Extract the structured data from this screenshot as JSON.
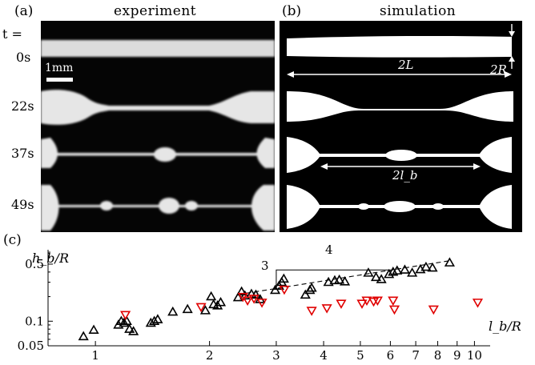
{
  "figure": {
    "panel_a": {
      "label": "(a)",
      "title": "experiment"
    },
    "panel_b": {
      "label": "(b)",
      "title": "simulation"
    },
    "panel_c": {
      "label": "(c)"
    },
    "time_header": "t =",
    "times": [
      "0s",
      "22s",
      "37s",
      "49s"
    ],
    "scale_bar": "1mm",
    "sim_annotations": {
      "radius": "2R",
      "length": "2L",
      "bead_length": "2l_b"
    }
  },
  "chart_data": {
    "type": "scatter",
    "title": "",
    "xlabel": "l_b/R",
    "ylabel": "h_b/R",
    "xscale": "log",
    "yscale": "log",
    "xlim": [
      0.75,
      11
    ],
    "ylim": [
      0.05,
      0.75
    ],
    "xticks": [
      "1",
      "2",
      "3",
      "4",
      "5",
      "6",
      "7",
      "8",
      "9",
      "10"
    ],
    "yticks": [
      "0.05",
      "0.1",
      "0.5"
    ],
    "slope_triangle": {
      "rise": "3",
      "run": "4"
    },
    "reference_line": {
      "slope": 0.75,
      "x": [
        2.5,
        8.7
      ],
      "y": [
        0.22,
        0.555
      ],
      "style": "dashed"
    },
    "colors": {
      "black_series": "#000000",
      "red_series": "#e00000"
    },
    "series": [
      {
        "marker": "triangle-up",
        "color": "#000000",
        "points": [
          [
            0.93,
            0.065
          ],
          [
            0.99,
            0.078
          ],
          [
            1.15,
            0.09
          ],
          [
            1.17,
            0.1
          ],
          [
            1.19,
            0.095
          ],
          [
            1.21,
            0.1
          ],
          [
            1.23,
            0.08
          ],
          [
            1.26,
            0.075
          ],
          [
            1.4,
            0.095
          ],
          [
            1.43,
            0.1
          ],
          [
            1.46,
            0.105
          ],
          [
            1.6,
            0.13
          ],
          [
            1.75,
            0.14
          ],
          [
            1.95,
            0.135
          ],
          [
            2.02,
            0.2
          ],
          [
            2.05,
            0.16
          ],
          [
            2.1,
            0.155
          ],
          [
            2.14,
            0.17
          ],
          [
            2.38,
            0.195
          ],
          [
            2.43,
            0.23
          ],
          [
            2.48,
            0.205
          ],
          [
            2.58,
            0.215
          ],
          [
            2.65,
            0.21
          ],
          [
            2.72,
            0.185
          ],
          [
            2.98,
            0.24
          ],
          [
            3.05,
            0.27
          ],
          [
            3.1,
            0.3
          ],
          [
            3.14,
            0.33
          ],
          [
            3.58,
            0.21
          ],
          [
            3.68,
            0.24
          ],
          [
            3.72,
            0.255
          ],
          [
            4.12,
            0.3
          ],
          [
            4.28,
            0.315
          ],
          [
            4.4,
            0.32
          ],
          [
            4.55,
            0.305
          ],
          [
            5.25,
            0.39
          ],
          [
            5.5,
            0.345
          ],
          [
            5.68,
            0.325
          ],
          [
            5.95,
            0.375
          ],
          [
            6.1,
            0.4
          ],
          [
            6.25,
            0.415
          ],
          [
            6.55,
            0.425
          ],
          [
            6.85,
            0.39
          ],
          [
            7.2,
            0.43
          ],
          [
            7.45,
            0.46
          ],
          [
            7.75,
            0.45
          ],
          [
            8.6,
            0.52
          ]
        ]
      },
      {
        "marker": "triangle-down",
        "color": "#e00000",
        "points": [
          [
            1.2,
            0.12
          ],
          [
            1.9,
            0.15
          ],
          [
            2.45,
            0.2
          ],
          [
            2.52,
            0.18
          ],
          [
            2.62,
            0.19
          ],
          [
            2.75,
            0.17
          ],
          [
            3.15,
            0.245
          ],
          [
            3.72,
            0.135
          ],
          [
            4.08,
            0.145
          ],
          [
            4.45,
            0.165
          ],
          [
            5.05,
            0.165
          ],
          [
            5.2,
            0.18
          ],
          [
            5.42,
            0.175
          ],
          [
            5.55,
            0.18
          ],
          [
            6.1,
            0.18
          ],
          [
            6.15,
            0.14
          ],
          [
            7.8,
            0.14
          ],
          [
            10.2,
            0.17
          ]
        ]
      }
    ]
  }
}
